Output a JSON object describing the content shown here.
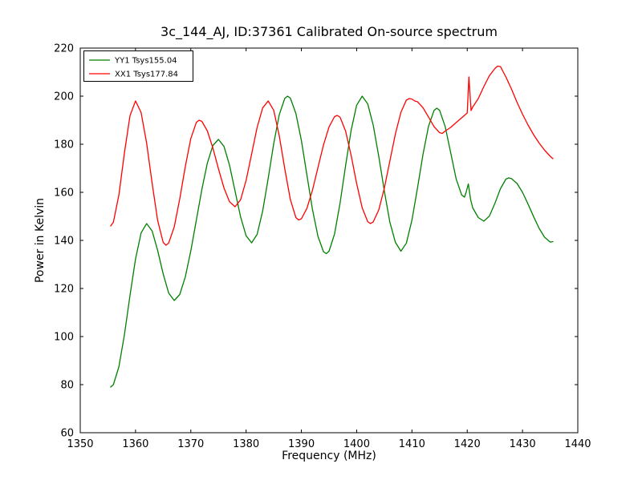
{
  "chart_data": {
    "type": "line",
    "title": "3c_144_AJ, ID:37361 Calibrated On-source spectrum",
    "xlabel": "Frequency (MHz)",
    "ylabel": "Power in Kelvin",
    "xlim": [
      1350,
      1440
    ],
    "ylim": [
      60,
      220
    ],
    "xticks": [
      1350,
      1360,
      1370,
      1380,
      1390,
      1400,
      1410,
      1420,
      1430,
      1440
    ],
    "yticks": [
      60,
      80,
      100,
      120,
      140,
      160,
      180,
      200,
      220
    ],
    "grid": false,
    "legend_position": "top-left",
    "background": "#ffffff",
    "frame_color": "#000000",
    "series": [
      {
        "name": "YY1 Tsys155.04",
        "color": "#008000",
        "x": [
          1355.5,
          1356,
          1357,
          1358,
          1359,
          1360,
          1361,
          1362,
          1363,
          1364,
          1365,
          1366,
          1367,
          1368,
          1369,
          1370,
          1371,
          1372,
          1373,
          1374,
          1375,
          1376,
          1377,
          1378,
          1379,
          1380,
          1381,
          1382,
          1383,
          1384,
          1385,
          1386,
          1387,
          1387.5,
          1388,
          1389,
          1390,
          1391,
          1392,
          1393,
          1394,
          1394.5,
          1395,
          1396,
          1397,
          1398,
          1399,
          1400,
          1401,
          1402,
          1403,
          1404,
          1405,
          1406,
          1407,
          1408,
          1409,
          1410,
          1411,
          1412,
          1413,
          1414,
          1414.5,
          1415,
          1416,
          1417,
          1418,
          1419,
          1419.5,
          1419.8,
          1420.2,
          1420.6,
          1421,
          1422,
          1423,
          1424,
          1425,
          1426,
          1427,
          1427.5,
          1428,
          1429,
          1430,
          1431,
          1432,
          1433,
          1434,
          1435,
          1435.5
        ],
        "y": [
          79,
          80,
          87.5,
          100.9,
          117.1,
          132.3,
          143.1,
          147,
          143.9,
          135.9,
          126.1,
          118.1,
          115,
          117.5,
          124.8,
          135.7,
          148.5,
          161.3,
          172.2,
          179.5,
          182,
          179.1,
          171.3,
          160.5,
          149.8,
          141.9,
          139,
          142.5,
          152.2,
          165.8,
          180.3,
          192.3,
          199.1,
          200,
          199.2,
          192.8,
          181.5,
          167.3,
          153,
          141.7,
          135.3,
          134.5,
          135.5,
          142.7,
          155.6,
          171.2,
          185.9,
          196.2,
          200,
          196.8,
          187.9,
          174.9,
          160.6,
          147.6,
          139.2,
          135.5,
          138.9,
          148.4,
          161.7,
          175.8,
          187.5,
          194.1,
          195,
          194.1,
          187.4,
          176.5,
          165.6,
          158.9,
          158,
          160,
          163.5,
          157,
          153.5,
          149.5,
          148,
          150.1,
          155.4,
          161.5,
          165.5,
          166,
          165.7,
          163.7,
          160,
          155.1,
          149.9,
          145,
          141.3,
          139.3,
          139.5
        ]
      },
      {
        "name": "XX1 Tsys177.84",
        "color": "#ff0000",
        "x": [
          1355.5,
          1356,
          1357,
          1358,
          1359,
          1360,
          1361,
          1362,
          1363,
          1364,
          1365,
          1365.5,
          1366,
          1367,
          1368,
          1369,
          1370,
          1371,
          1371.5,
          1372,
          1373,
          1374,
          1375,
          1376,
          1377,
          1378,
          1379,
          1380,
          1381,
          1382,
          1383,
          1384,
          1385,
          1386,
          1387,
          1388,
          1389,
          1389.5,
          1390,
          1391,
          1392,
          1393,
          1394,
          1395,
          1396,
          1396.5,
          1397,
          1398,
          1399,
          1400,
          1401,
          1402,
          1402.5,
          1403,
          1404,
          1405,
          1406,
          1407,
          1408,
          1409,
          1409.5,
          1410,
          1410.5,
          1411,
          1412,
          1413,
          1414,
          1415,
          1415.5,
          1416,
          1417,
          1418,
          1419,
          1420,
          1420.3,
          1420.7,
          1421,
          1422,
          1423,
          1424,
          1425,
          1425.5,
          1426,
          1427,
          1428,
          1429,
          1430,
          1431,
          1432,
          1433,
          1434,
          1435,
          1435.5
        ],
        "y": [
          146,
          147.6,
          159,
          176.5,
          191.9,
          198,
          193.2,
          180.5,
          163.7,
          148.4,
          139.2,
          138,
          138.9,
          145.6,
          157.3,
          170.7,
          182.4,
          189.1,
          190,
          189.5,
          185.5,
          178.4,
          169.8,
          161.8,
          156.1,
          154,
          156.9,
          165,
          176,
          187,
          195.1,
          198,
          194.1,
          183.5,
          169.7,
          157,
          149.5,
          148.5,
          149,
          153.3,
          160.8,
          170.3,
          179.7,
          187.2,
          191.5,
          192,
          191.2,
          185.4,
          175.3,
          163.7,
          153.6,
          147.8,
          147,
          147.7,
          152.7,
          161.7,
          173,
          184.3,
          193.3,
          198.4,
          199,
          198.8,
          198,
          197.7,
          195.2,
          191.3,
          187.3,
          184.8,
          184.5,
          185.5,
          187,
          189,
          191,
          193,
          208,
          194,
          195.5,
          199,
          204,
          208.5,
          211.5,
          212.5,
          212.3,
          208,
          203,
          197.5,
          192.5,
          188,
          184,
          180.5,
          177.5,
          175,
          174
        ]
      }
    ]
  }
}
